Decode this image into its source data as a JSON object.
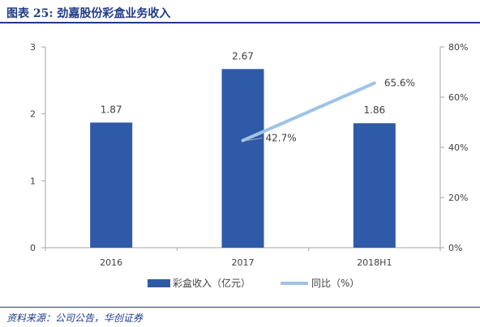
{
  "title": "图表 25:  劲嘉股份彩盒业务收入",
  "source": "资料来源：公司公告，华创证券",
  "colors": {
    "bar": "#2e5aa8",
    "line": "#9ec3e6",
    "axis": "#a6a6a6",
    "text": "#404040"
  },
  "chart_data": {
    "type": "bar",
    "categories": [
      "2016",
      "2017",
      "2018H1"
    ],
    "series": [
      {
        "name": "彩盒收入（亿元）",
        "type": "bar",
        "axis": "left",
        "values": [
          1.87,
          2.67,
          1.86
        ],
        "labels": [
          "1.87",
          "2.67",
          "1.86"
        ]
      },
      {
        "name": "同比（%）",
        "type": "line",
        "axis": "right",
        "values": [
          null,
          42.7,
          65.6
        ],
        "labels": [
          "",
          "42.7%",
          "65.6%"
        ]
      }
    ],
    "y_left": {
      "min": 0,
      "max": 3,
      "ticks": [
        "0",
        "1",
        "2",
        "3"
      ]
    },
    "y_right": {
      "min": 0,
      "max": 80,
      "ticks": [
        "0%",
        "20%",
        "40%",
        "60%",
        "80%"
      ]
    },
    "legend_position": "bottom",
    "grid": false
  }
}
